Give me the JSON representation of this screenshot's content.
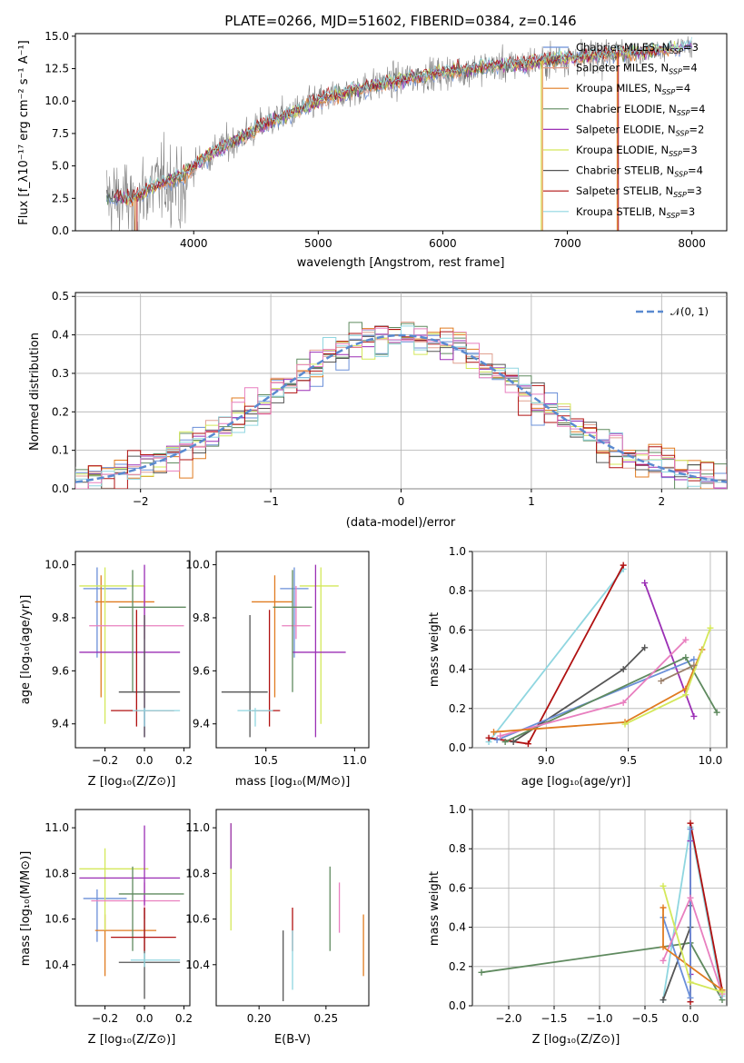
{
  "colors": {
    "Chabrier MILES": "#6a8fd8",
    "Salpeter MILES": "#e0a090",
    "Kroupa MILES": "#e07b20",
    "Chabrier ELODIE": "#5f8a5f",
    "Salpeter ELODIE": "#9b2fb5",
    "Kroupa ELODIE": "#d4e85a",
    "Chabrier STELIB": "#555555",
    "Salpeter STELIB": "#b01010",
    "Kroupa STELIB": "#8fd6e0",
    "pink": "#e87fbf",
    "data": "#808080"
  },
  "chart_data": [
    {
      "id": "spectrum",
      "type": "line",
      "title": "PLATE=0266, MJD=51602, FIBERID=0384, z=0.146",
      "xlabel": "wavelength [Angstrom, rest frame]",
      "ylabel": "Flux [f_λ10⁻¹⁷ erg cm⁻² s⁻¹ A⁻¹]",
      "xlim": [
        3050,
        8280
      ],
      "ylim": [
        0,
        15.2
      ],
      "xticks": [
        "4000",
        "5000",
        "6000",
        "7000",
        "8000"
      ],
      "xtick_values": [
        4000,
        5000,
        6000,
        7000,
        8000
      ],
      "yticks": [
        "0.0",
        "2.5",
        "5.0",
        "7.5",
        "10.0",
        "12.5",
        "15.0"
      ],
      "ytick_values": [
        0,
        2.5,
        5,
        7.5,
        10,
        12.5,
        15
      ],
      "grid": false,
      "legend_position": "top-right",
      "legend": [
        {
          "label": "Chabrier MILES, N",
          "sub": "SSP",
          "suffix": "=3",
          "color": "#6a8fd8"
        },
        {
          "label": "Salpeter MILES, N",
          "sub": "SSP",
          "suffix": "=4",
          "color": "#e0a090"
        },
        {
          "label": "Kroupa MILES, N",
          "sub": "SSP",
          "suffix": "=4",
          "color": "#e07b20"
        },
        {
          "label": "Chabrier ELODIE, N",
          "sub": "SSP",
          "suffix": "=4",
          "color": "#5f8a5f"
        },
        {
          "label": "Salpeter ELODIE, N",
          "sub": "SSP",
          "suffix": "=2",
          "color": "#9b2fb5"
        },
        {
          "label": "Kroupa ELODIE, N",
          "sub": "SSP",
          "suffix": "=3",
          "color": "#d4e85a"
        },
        {
          "label": "Chabrier STELIB, N",
          "sub": "SSP",
          "suffix": "=4",
          "color": "#555555"
        },
        {
          "label": "Salpeter STELIB, N",
          "sub": "SSP",
          "suffix": "=3",
          "color": "#b01010"
        },
        {
          "label": "Kroupa STELIB, N",
          "sub": "SSP",
          "suffix": "=3",
          "color": "#8fd6e0"
        }
      ],
      "continuum": {
        "x": [
          3300,
          3500,
          3700,
          3900,
          4000,
          4200,
          4400,
          4600,
          4800,
          5000,
          5200,
          5400,
          5600,
          5800,
          6000,
          6200,
          6400,
          6600,
          6800,
          7000,
          7200,
          7400,
          7600,
          7800,
          8000
        ],
        "y": [
          2.6,
          2.4,
          3.5,
          4.2,
          5.0,
          6.3,
          7.3,
          8.4,
          9.1,
          10.0,
          10.6,
          11.1,
          11.5,
          11.9,
          12.2,
          12.4,
          12.7,
          12.8,
          13.1,
          13.3,
          13.5,
          13.7,
          13.8,
          14.0,
          14.3
        ]
      }
    },
    {
      "id": "residuals",
      "type": "histogram",
      "xlabel": "(data-model)/error",
      "ylabel": "Normed distribution",
      "xlim": [
        -2.5,
        2.5
      ],
      "ylim": [
        0,
        0.51
      ],
      "xticks": [
        "−2",
        "−1",
        "0",
        "1",
        "2"
      ],
      "xtick_values": [
        -2,
        -1,
        0,
        1,
        2
      ],
      "yticks": [
        "0.0",
        "0.1",
        "0.2",
        "0.3",
        "0.4",
        "0.5"
      ],
      "ytick_values": [
        0,
        0.1,
        0.2,
        0.3,
        0.4,
        0.5
      ],
      "grid": true,
      "bin_width": 0.1,
      "legend_position": "top-right",
      "legend": [
        {
          "label": "𝒩(0, 1)",
          "color": "#5a8ad0",
          "style": "dashed"
        }
      ]
    },
    {
      "id": "age_vs_Z",
      "type": "errorbar",
      "xlabel": "Z [log₁₀(Z/Z⊙)]",
      "ylabel": "age  [log₁₀(age/yr)]",
      "xlim": [
        -0.35,
        0.23
      ],
      "ylim": [
        9.31,
        10.05
      ],
      "xticks": [
        "−0.2",
        "0.0",
        "0.2"
      ],
      "xtick_values": [
        -0.2,
        0,
        0.2
      ],
      "yticks": [
        "9.4",
        "9.6",
        "9.8",
        "10.0"
      ],
      "ytick_values": [
        9.4,
        9.6,
        9.8,
        10.0
      ],
      "points": [
        {
          "x": -0.24,
          "y": 9.91,
          "xerr": [
            0.07,
            0.15
          ],
          "yerr": [
            0.26,
            0.08
          ],
          "color": "#6a8fd8"
        },
        {
          "x": -0.22,
          "y": 9.86,
          "xerr": [
            0.03,
            0.27
          ],
          "yerr": [
            0.36,
            0.1
          ],
          "color": "#e07b20"
        },
        {
          "x": -0.2,
          "y": 9.92,
          "xerr": [
            0.13,
            0.2
          ],
          "yerr": [
            0.52,
            0.07
          ],
          "color": "#d4e85a"
        },
        {
          "x": 0.0,
          "y": 9.77,
          "xerr": [
            0.28,
            0.2
          ],
          "yerr": [
            0.05,
            0.15
          ],
          "color": "#e87fbf"
        },
        {
          "x": 0.0,
          "y": 9.67,
          "xerr": [
            0.33,
            0.18
          ],
          "yerr": [
            0.32,
            0.33
          ],
          "color": "#9b2fb5"
        },
        {
          "x": -0.06,
          "y": 9.84,
          "xerr": [
            0.07,
            0.27
          ],
          "yerr": [
            0.32,
            0.14
          ],
          "color": "#5f8a5f"
        },
        {
          "x": 0.0,
          "y": 9.52,
          "xerr": [
            0.13,
            0.18
          ],
          "yerr": [
            0.17,
            0.29
          ],
          "color": "#555555"
        },
        {
          "x": -0.04,
          "y": 9.45,
          "xerr": [
            0.13,
            0.19
          ],
          "yerr": [
            0.06,
            0.38
          ],
          "color": "#b01010"
        },
        {
          "x": 0.0,
          "y": 9.45,
          "xerr": [
            0.06,
            0.18
          ],
          "yerr": [
            0.06,
            0.01
          ],
          "color": "#8fd6e0"
        }
      ]
    },
    {
      "id": "age_vs_mass",
      "type": "errorbar",
      "xlabel": "mass [log₁₀(M/M⊙)]",
      "xlim": [
        10.22,
        11.08
      ],
      "ylim": [
        9.31,
        10.05
      ],
      "xticks": [
        "10.5",
        "11.0"
      ],
      "xtick_values": [
        10.5,
        11.0
      ],
      "yticks": [
        "9.4",
        "9.6",
        "9.8",
        "10.0"
      ],
      "ytick_values": [
        9.4,
        9.6,
        9.8,
        10.0
      ],
      "points": [
        {
          "x": 10.66,
          "y": 9.91,
          "xerr": [
            0.08,
            0.08
          ],
          "yerr": [
            0.26,
            0.08
          ],
          "color": "#6a8fd8"
        },
        {
          "x": 10.55,
          "y": 9.86,
          "xerr": [
            0.13,
            0.1
          ],
          "yerr": [
            0.36,
            0.1
          ],
          "color": "#e07b20"
        },
        {
          "x": 10.81,
          "y": 9.92,
          "xerr": [
            0.12,
            0.1
          ],
          "yerr": [
            0.52,
            0.07
          ],
          "color": "#d4e85a"
        },
        {
          "x": 10.67,
          "y": 9.77,
          "xerr": [
            0.08,
            0.08
          ],
          "yerr": [
            0.05,
            0.15
          ],
          "color": "#e87fbf"
        },
        {
          "x": 10.78,
          "y": 9.67,
          "xerr": [
            0.13,
            0.17
          ],
          "yerr": [
            0.32,
            0.33
          ],
          "color": "#9b2fb5"
        },
        {
          "x": 10.65,
          "y": 9.84,
          "xerr": [
            0.11,
            0.11
          ],
          "yerr": [
            0.32,
            0.14
          ],
          "color": "#5f8a5f"
        },
        {
          "x": 10.41,
          "y": 9.52,
          "xerr": [
            0.16,
            0.1
          ],
          "yerr": [
            0.17,
            0.29
          ],
          "color": "#555555"
        },
        {
          "x": 10.52,
          "y": 9.45,
          "xerr": [
            0.1,
            0.06
          ],
          "yerr": [
            0.06,
            0.38
          ],
          "color": "#b01010"
        },
        {
          "x": 10.44,
          "y": 9.45,
          "xerr": [
            0.1,
            0.1
          ],
          "yerr": [
            0.06,
            0.01
          ],
          "color": "#8fd6e0"
        }
      ]
    },
    {
      "id": "weight_vs_age",
      "type": "line",
      "xlabel": "age  [log₁₀(age/yr)]",
      "ylabel": "mass weight",
      "xlim": [
        8.55,
        10.1
      ],
      "ylim": [
        0,
        1.0
      ],
      "xticks": [
        "9.0",
        "9.5",
        "10.0"
      ],
      "xtick_values": [
        9.0,
        9.5,
        10.0
      ],
      "yticks": [
        "0.0",
        "0.2",
        "0.4",
        "0.6",
        "0.8",
        "1.0"
      ],
      "ytick_values": [
        0,
        0.2,
        0.4,
        0.6,
        0.8,
        1.0
      ],
      "grid": true,
      "series": [
        {
          "color": "#8fd6e0",
          "x": [
            8.65,
            9.47
          ],
          "y": [
            0.03,
            0.91
          ]
        },
        {
          "color": "#b01010",
          "x": [
            8.65,
            8.89,
            9.47
          ],
          "y": [
            0.05,
            0.02,
            0.93
          ]
        },
        {
          "color": "#9b2fb5",
          "x": [
            9.6,
            9.9
          ],
          "y": [
            0.84,
            0.16
          ]
        },
        {
          "color": "#555555",
          "x": [
            8.8,
            9.47,
            9.6
          ],
          "y": [
            0.03,
            0.4,
            0.51
          ]
        },
        {
          "color": "#6a8fd8",
          "x": [
            8.7,
            9.9
          ],
          "y": [
            0.04,
            0.45
          ]
        },
        {
          "color": "#5f8a5f",
          "x": [
            8.75,
            9.85,
            10.04
          ],
          "y": [
            0.03,
            0.46,
            0.18
          ]
        },
        {
          "color": "#e87fbf",
          "x": [
            8.72,
            9.47,
            9.85
          ],
          "y": [
            0.06,
            0.23,
            0.55
          ]
        },
        {
          "color": "#e07b20",
          "x": [
            8.68,
            9.48,
            9.85,
            9.95
          ],
          "y": [
            0.08,
            0.13,
            0.3,
            0.5
          ]
        },
        {
          "color": "#d4e85a",
          "x": [
            9.48,
            9.85,
            10.0
          ],
          "y": [
            0.12,
            0.27,
            0.61
          ]
        },
        {
          "color": "#9b7f6a",
          "x": [
            9.7,
            9.9
          ],
          "y": [
            0.34,
            0.42
          ]
        }
      ]
    },
    {
      "id": "mass_vs_Z",
      "type": "errorbar",
      "xlabel": "Z [log₁₀(Z/Z⊙)]",
      "ylabel": "mass [log₁₀(M/M⊙)]",
      "xlim": [
        -0.35,
        0.23
      ],
      "ylim": [
        10.22,
        11.08
      ],
      "xticks": [
        "−0.2",
        "0.0",
        "0.2"
      ],
      "xtick_values": [
        -0.2,
        0,
        0.2
      ],
      "yticks": [
        "10.4",
        "10.6",
        "10.8",
        "11.0"
      ],
      "ytick_values": [
        10.4,
        10.6,
        10.8,
        11.0
      ],
      "points": [
        {
          "x": -0.24,
          "y": 10.69,
          "xerr": [
            0.07,
            0.15
          ],
          "yerr": [
            0.19,
            0.04
          ],
          "color": "#6a8fd8"
        },
        {
          "x": -0.2,
          "y": 10.55,
          "xerr": [
            0.05,
            0.26
          ],
          "yerr": [
            0.2,
            0.07
          ],
          "color": "#e07b20"
        },
        {
          "x": -0.2,
          "y": 10.82,
          "xerr": [
            0.13,
            0.22
          ],
          "yerr": [
            0.27,
            0.09
          ],
          "color": "#d4e85a"
        },
        {
          "x": 0.0,
          "y": 10.68,
          "xerr": [
            0.27,
            0.18
          ],
          "yerr": [
            0.08,
            0.08
          ],
          "color": "#e87fbf"
        },
        {
          "x": 0.0,
          "y": 10.78,
          "xerr": [
            0.33,
            0.18
          ],
          "yerr": [
            0.12,
            0.23
          ],
          "color": "#9b2fb5"
        },
        {
          "x": -0.06,
          "y": 10.71,
          "xerr": [
            0.07,
            0.26
          ],
          "yerr": [
            0.25,
            0.12
          ],
          "color": "#5f8a5f"
        },
        {
          "x": 0.0,
          "y": 10.41,
          "xerr": [
            0.13,
            0.18
          ],
          "yerr": [
            0.16,
            0.24
          ],
          "color": "#555555"
        },
        {
          "x": 0.0,
          "y": 10.52,
          "xerr": [
            0.17,
            0.16
          ],
          "yerr": [
            0.06,
            0.13
          ],
          "color": "#b01010"
        },
        {
          "x": 0.0,
          "y": 10.42,
          "xerr": [
            0.07,
            0.18
          ],
          "yerr": [
            0.03,
            0.03
          ],
          "color": "#8fd6e0"
        }
      ]
    },
    {
      "id": "mass_vs_ebv",
      "type": "errorbar",
      "xlabel": "E(B-V)",
      "xlim": [
        0.168,
        0.282
      ],
      "ylim": [
        10.22,
        11.08
      ],
      "xticks": [
        "0.20",
        "0.25"
      ],
      "xtick_values": [
        0.2,
        0.25
      ],
      "yticks": [
        "10.4",
        "10.6",
        "10.8",
        "11.0"
      ],
      "ytick_values": [
        10.4,
        10.6,
        10.8,
        11.0
      ],
      "points": [
        {
          "x": 0.179,
          "y": 10.9,
          "xerr": [
            0,
            0
          ],
          "yerr": [
            0.35,
            0.12
          ],
          "color": "#d4e85a"
        },
        {
          "x": 0.179,
          "y": 10.95,
          "xerr": [
            0,
            0
          ],
          "yerr": [
            0.13,
            0.07
          ],
          "color": "#9b2fb5"
        },
        {
          "x": 0.218,
          "y": 10.41,
          "xerr": [
            0,
            0
          ],
          "yerr": [
            0.17,
            0.14
          ],
          "color": "#555555"
        },
        {
          "x": 0.225,
          "y": 10.52,
          "xerr": [
            0,
            0
          ],
          "yerr": [
            0.06,
            0.13
          ],
          "color": "#b01010"
        },
        {
          "x": 0.225,
          "y": 10.42,
          "xerr": [
            0,
            0
          ],
          "yerr": [
            0.13,
            0.13
          ],
          "color": "#8fd6e0"
        },
        {
          "x": 0.253,
          "y": 10.71,
          "xerr": [
            0,
            0
          ],
          "yerr": [
            0.25,
            0.12
          ],
          "color": "#5f8a5f"
        },
        {
          "x": 0.26,
          "y": 10.68,
          "xerr": [
            0,
            0
          ],
          "yerr": [
            0.14,
            0.08
          ],
          "color": "#e87fbf"
        },
        {
          "x": 0.278,
          "y": 10.55,
          "xerr": [
            0,
            0
          ],
          "yerr": [
            0.2,
            0.07
          ],
          "color": "#e07b20"
        }
      ]
    },
    {
      "id": "weight_vs_Z",
      "type": "line",
      "xlabel": "Z [log₁₀(Z/Z⊙)]",
      "ylabel": "mass weight",
      "xlim": [
        -2.4,
        0.4
      ],
      "ylim": [
        0,
        1.0
      ],
      "xticks": [
        "−2.0",
        "−1.5",
        "−1.0",
        "−0.5",
        "0.0"
      ],
      "xtick_values": [
        -2.0,
        -1.5,
        -1.0,
        -0.5,
        0.0
      ],
      "yticks": [
        "0.0",
        "0.2",
        "0.4",
        "0.6",
        "0.8",
        "1.0"
      ],
      "ytick_values": [
        0,
        0.2,
        0.4,
        0.6,
        0.8,
        1.0
      ],
      "grid": true,
      "series": [
        {
          "color": "#5f8a5f",
          "x": [
            -2.3,
            0.0,
            0.35
          ],
          "y": [
            0.17,
            0.32,
            0.03
          ]
        },
        {
          "color": "#8fd6e0",
          "x": [
            -0.3,
            0.0,
            0.35
          ],
          "y": [
            0.03,
            0.91,
            0.05
          ]
        },
        {
          "color": "#b01010",
          "x": [
            0.0,
            0.0,
            0.35
          ],
          "y": [
            0.02,
            0.93,
            0.08
          ]
        },
        {
          "color": "#9b2fb5",
          "x": [
            0.0,
            0.0
          ],
          "y": [
            0.84,
            0.16
          ]
        },
        {
          "color": "#555555",
          "x": [
            -0.3,
            0.0,
            0.0
          ],
          "y": [
            0.03,
            0.4,
            0.51
          ]
        },
        {
          "color": "#6a8fd8",
          "x": [
            -0.3,
            0.0,
            0.0
          ],
          "y": [
            0.45,
            0.04,
            0.9
          ]
        },
        {
          "color": "#e87fbf",
          "x": [
            -0.3,
            0.0,
            0.35
          ],
          "y": [
            0.23,
            0.55,
            0.06
          ]
        },
        {
          "color": "#e07b20",
          "x": [
            -0.3,
            -0.3,
            0.35
          ],
          "y": [
            0.5,
            0.3,
            0.08
          ]
        },
        {
          "color": "#d4e85a",
          "x": [
            -0.3,
            0.0,
            0.35
          ],
          "y": [
            0.61,
            0.12,
            0.07
          ]
        }
      ]
    }
  ]
}
